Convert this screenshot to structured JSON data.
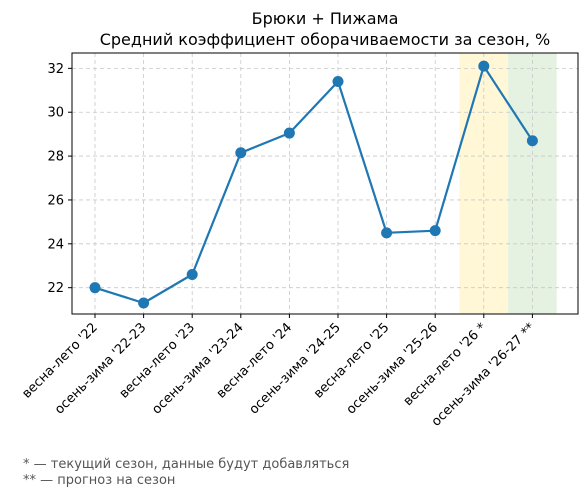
{
  "chart_data": {
    "type": "line",
    "title": "Брюки + Пижама",
    "subtitle": "Средний коэффициент оборачиваемости за сезон, %",
    "categories": [
      "весна-лето '22",
      "осень-зима '22-23",
      "весна-лето '23",
      "осень-зима '23-24",
      "весна-лето '24",
      "осень-зима '24-25",
      "весна-лето '25",
      "осень-зима '25-26",
      "весна-лето '26 *",
      "осень-зима '26-27 **"
    ],
    "values": [
      22.0,
      21.3,
      22.6,
      28.15,
      29.05,
      31.4,
      24.5,
      24.6,
      32.1,
      28.7
    ],
    "yticks": [
      22,
      24,
      26,
      28,
      30,
      32
    ],
    "ylim": [
      20.8,
      32.7
    ],
    "grid": true,
    "line_color": "#1f77b4",
    "highlights": [
      {
        "category": "весна-лето '26 *",
        "color": "#fff7d6"
      },
      {
        "category": "осень-зима '26-27 **",
        "color": "#e5f2e2"
      }
    ]
  },
  "footnotes": [
    "* — текущий сезон, данные будут добавляться",
    "** — прогноз на сезон"
  ]
}
